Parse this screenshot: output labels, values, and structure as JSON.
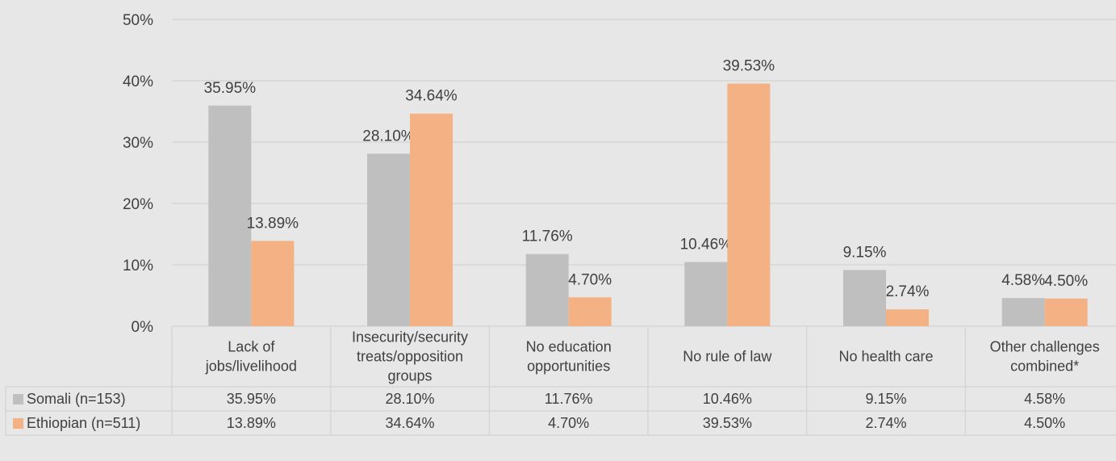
{
  "chart_data": {
    "type": "bar",
    "categories": [
      [
        "Lack of",
        "jobs/livelihood"
      ],
      [
        "Insecurity/security",
        "treats/opposition",
        "groups"
      ],
      [
        "No education",
        "opportunities"
      ],
      [
        "No rule of law"
      ],
      [
        "No health care"
      ],
      [
        "Other challenges",
        "combined*"
      ]
    ],
    "series": [
      {
        "name": "Somali (n=153)",
        "color": "#bfbfbf",
        "values": [
          35.95,
          28.1,
          11.76,
          10.46,
          9.15,
          4.58
        ],
        "labels": [
          "35.95%",
          "28.10%",
          "11.76%",
          "10.46%",
          "9.15%",
          "4.58%"
        ]
      },
      {
        "name": "Ethiopian (n=511)",
        "color": "#f4b183",
        "values": [
          13.89,
          34.64,
          4.7,
          39.53,
          2.74,
          4.5
        ],
        "labels": [
          "13.89%",
          "34.64%",
          "4.70%",
          "39.53%",
          "2.74%",
          "4.50%"
        ]
      }
    ],
    "yticks": [
      "0%",
      "10%",
      "20%",
      "30%",
      "40%",
      "50%"
    ],
    "ylim": [
      0,
      50
    ],
    "grid": true,
    "data_table": true,
    "title": "",
    "xlabel": "",
    "ylabel": ""
  }
}
